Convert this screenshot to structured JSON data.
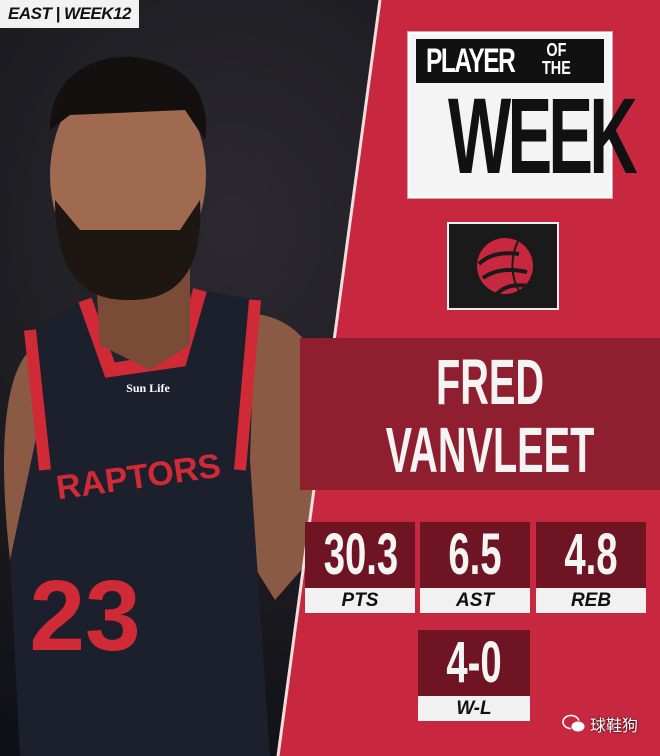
{
  "tag": "EAST | WEEK12",
  "title": {
    "line1": "PLAYER",
    "line1b": "OF",
    "line1c": "THE",
    "line2": "WEEK"
  },
  "team_logo": "raptors-basketball-claw-icon",
  "player": {
    "first": "FRED",
    "last": "VANVLEET",
    "jersey": {
      "team": "RAPTORS",
      "number": "23",
      "sponsor": "Sun Life"
    }
  },
  "stats": [
    {
      "value": "30.3",
      "label": "PTS"
    },
    {
      "value": "6.5",
      "label": "AST"
    },
    {
      "value": "4.8",
      "label": "REB"
    },
    {
      "value": "4-0",
      "label": "W-L"
    }
  ],
  "watermark": {
    "icon": "wechat-icon",
    "text": "球鞋狗"
  },
  "colors": {
    "panel_red": "#c8283f",
    "band_dark": "#8f1f2f",
    "stat_box": "#6e1422",
    "jersey": "#1c1f2c",
    "trim": "#d02a36"
  }
}
